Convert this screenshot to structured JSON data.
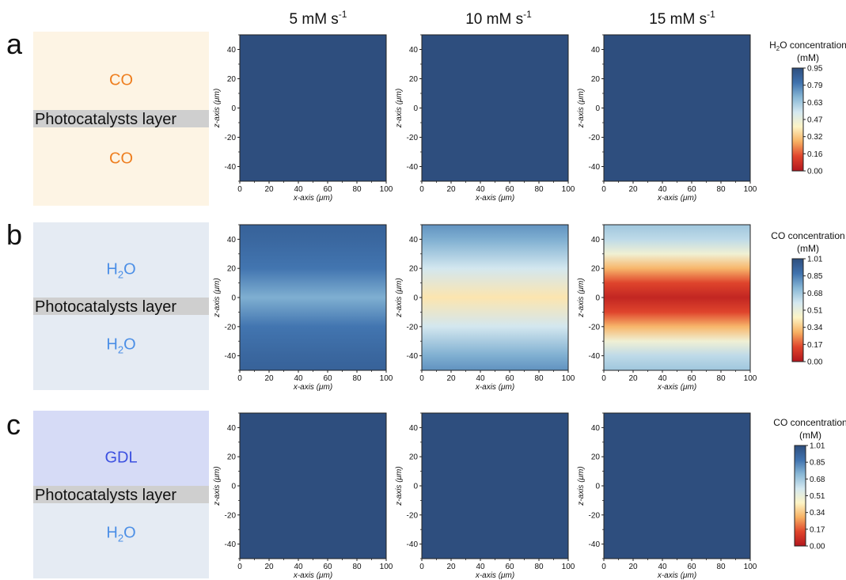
{
  "column_headers": [
    {
      "base": "5 mM s",
      "sup": "-1"
    },
    {
      "base": "10 mM s",
      "sup": "-1"
    },
    {
      "base": "15 mM s",
      "sup": "-1"
    }
  ],
  "rows": [
    {
      "letter": "a",
      "schematic": {
        "bg": "#fdf4e4",
        "top": {
          "text": "CO",
          "sub": "",
          "color": "#ee7e1f"
        },
        "middle": "Photocatalysts layer",
        "bottom": {
          "text": "CO",
          "sub": "",
          "color": "#ee7e1f"
        }
      },
      "colorbar": {
        "title_lines": [
          [
            "H",
            "2",
            "O concentration"
          ],
          [
            "(mM)"
          ]
        ],
        "ticks": [
          "0.95",
          "0.79",
          "0.63",
          "0.47",
          "0.32",
          "0.16",
          "0.00"
        ]
      }
    },
    {
      "letter": "b",
      "schematic": {
        "bg": "#e5ebf3",
        "top": {
          "text": "H",
          "sub": "2",
          "rest": "O",
          "color": "#4c8fe6"
        },
        "middle": "Photocatalysts layer",
        "bottom": {
          "text": "H",
          "sub": "2",
          "rest": "O",
          "color": "#4c8fe6"
        }
      },
      "colorbar": {
        "title_lines": [
          [
            "CO concentration"
          ],
          [
            "(mM)"
          ]
        ],
        "ticks": [
          "1.01",
          "0.85",
          "0.68",
          "0.51",
          "0.34",
          "0.17",
          "0.00"
        ]
      }
    },
    {
      "letter": "c",
      "schematic": {
        "bg_top": "#d6dbf6",
        "bg_bottom": "#e5ebf3",
        "top": {
          "text": "GDL",
          "sub": "",
          "color": "#3c50e0"
        },
        "middle": "Photocatalysts layer",
        "bottom": {
          "text": "H",
          "sub": "2",
          "rest": "O",
          "color": "#4c8fe6"
        }
      },
      "colorbar": {
        "title_lines": [
          [
            "CO concentration"
          ],
          [
            "(mM)"
          ]
        ],
        "ticks": [
          "1.01",
          "0.85",
          "0.68",
          "0.51",
          "0.34",
          "0.17",
          "0.00"
        ]
      }
    }
  ],
  "chart_data": {
    "type": "heatmap",
    "xlabel": "x-axis (μm)",
    "ylabel": "z-axis (μm)",
    "xlim": [
      0,
      100
    ],
    "ylim": [
      -50,
      50
    ],
    "xticks": [
      0,
      20,
      40,
      60,
      80,
      100
    ],
    "yticks": [
      40,
      20,
      0,
      -20,
      -40
    ],
    "colormap": [
      "#b2161d",
      "#e0452c",
      "#f7b163",
      "#fdf4c6",
      "#d4e8f0",
      "#89b8d6",
      "#3f72ae",
      "#2e4e7e"
    ],
    "panels": [
      {
        "row": "a",
        "column": "5 mM s-1",
        "profile": {
          "z": [
            -50,
            0,
            50
          ],
          "value": [
            0.95,
            0.95,
            0.95
          ]
        }
      },
      {
        "row": "a",
        "column": "10 mM s-1",
        "profile": {
          "z": [
            -50,
            0,
            50
          ],
          "value": [
            0.95,
            0.95,
            0.95
          ]
        }
      },
      {
        "row": "a",
        "column": "15 mM s-1",
        "profile": {
          "z": [
            -50,
            0,
            50
          ],
          "value": [
            0.95,
            0.95,
            0.95
          ]
        }
      },
      {
        "row": "b",
        "column": "5 mM s-1",
        "profile": {
          "z": [
            -50,
            -40,
            -20,
            0,
            20,
            40,
            50
          ],
          "value": [
            0.93,
            0.91,
            0.86,
            0.74,
            0.86,
            0.91,
            0.93
          ]
        }
      },
      {
        "row": "b",
        "column": "10 mM s-1",
        "profile": {
          "z": [
            -50,
            -40,
            -20,
            0,
            20,
            40,
            50
          ],
          "value": [
            0.8,
            0.74,
            0.58,
            0.4,
            0.58,
            0.74,
            0.8
          ]
        }
      },
      {
        "row": "b",
        "column": "15 mM s-1",
        "profile": {
          "z": [
            -50,
            -40,
            -30,
            -20,
            -10,
            0,
            10,
            20,
            30,
            40,
            50
          ],
          "value": [
            0.68,
            0.62,
            0.48,
            0.3,
            0.14,
            0.05,
            0.14,
            0.3,
            0.48,
            0.62,
            0.68
          ]
        }
      },
      {
        "row": "c",
        "column": "5 mM s-1",
        "profile": {
          "z": [
            -50,
            0,
            50
          ],
          "value": [
            1.01,
            1.01,
            1.01
          ]
        }
      },
      {
        "row": "c",
        "column": "10 mM s-1",
        "profile": {
          "z": [
            -50,
            0,
            50
          ],
          "value": [
            1.01,
            1.01,
            1.01
          ]
        }
      },
      {
        "row": "c",
        "column": "15 mM s-1",
        "profile": {
          "z": [
            -50,
            0,
            50
          ],
          "value": [
            1.01,
            1.01,
            1.01
          ]
        }
      }
    ]
  }
}
